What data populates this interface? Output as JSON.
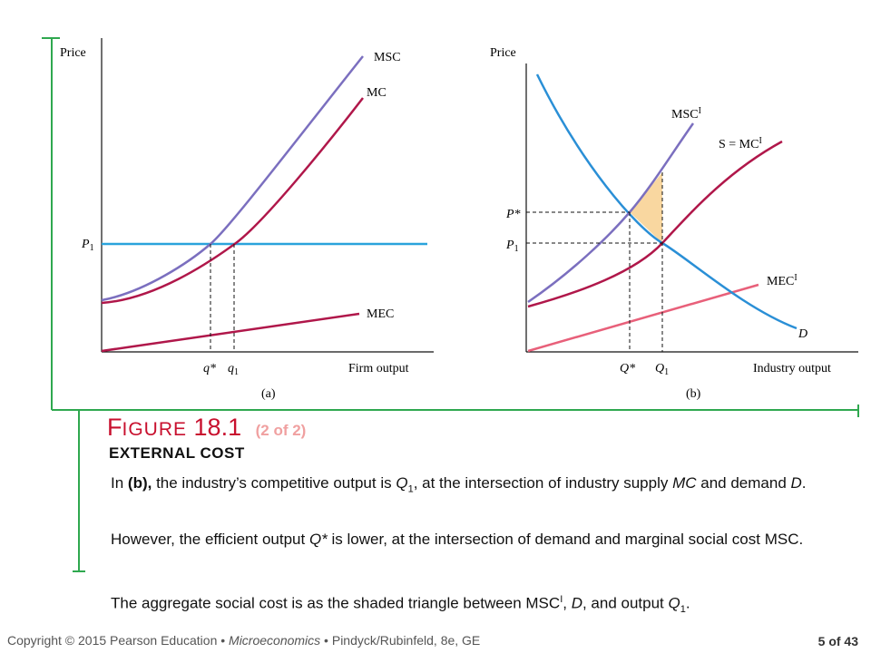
{
  "figure": {
    "title_first_letter": "F",
    "title_rest": "IGURE",
    "number": "18.1",
    "part": "(2 of 2)",
    "subtitle": "EXTERNAL COST"
  },
  "panel_a": {
    "y_axis_label": "Price",
    "x_axis_label": "Firm output",
    "caption": "(a)",
    "price_label": "P",
    "price_sub": "1",
    "qstar_label": "q*",
    "q1_label": "q",
    "q1_sub": "1",
    "curves": {
      "msc": "MSC",
      "mc": "MC",
      "mec": "MEC"
    }
  },
  "panel_b": {
    "y_axis_label": "Price",
    "x_axis_label": "Industry output",
    "caption": "(b)",
    "pstar_label": "P*",
    "p1_label": "P",
    "p1_sub": "1",
    "qstar_label": "Q*",
    "q1_label": "Q",
    "q1_sub": "1",
    "curves": {
      "msc": "MSC",
      "msc_sup": "I",
      "s_mc": "S = MC",
      "s_mc_sup": "I",
      "mec": "MEC",
      "mec_sup": "I",
      "demand": "D"
    }
  },
  "text": {
    "p1": {
      "a": "In ",
      "b": "(b),",
      "c": " the industry’s competitive output is ",
      "d": "Q",
      "e": "1",
      "f": ", at the intersection of industry supply ",
      "g": "MC",
      "h": " and demand ",
      "i": "D",
      "j": "."
    },
    "p2": {
      "a": "However, the efficient output ",
      "b": "Q*",
      "c": " is lower, at the intersection of demand and marginal social cost MSC."
    },
    "p3": {
      "a": "The aggregate social cost is as the shaded triangle between MSC",
      "b": "I",
      "c": ", ",
      "d": "D",
      "e": ", and output ",
      "f": "Q",
      "g": "1",
      "h": "."
    }
  },
  "footer": {
    "copyright": "Copyright © 2015  Pearson Education • ",
    "book": "Microeconomics",
    "authors": " •  Pindyck/Rubinfeld, 8e, GE",
    "page": "5 of 43"
  },
  "colors": {
    "msc": "#7b6fbf",
    "mc": "#b0174a",
    "price_line": "#2aa3dc",
    "demand": "#2a8fd6",
    "mec_b": "#e8607a",
    "shade": "#f9d7a0",
    "bracket": "#2fa84f",
    "title": "#c8102e"
  }
}
